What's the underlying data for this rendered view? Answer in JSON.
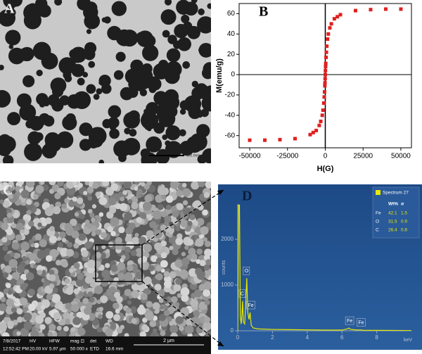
{
  "panel_a": {
    "label": "A",
    "scale": "500.0nm"
  },
  "panel_c": {
    "label": "C",
    "info_headers": [
      "7/8/2017",
      "HV",
      "HFW",
      "mag ⊡",
      "det",
      "WD"
    ],
    "info_values": [
      "12:52:42 PM",
      "20.00 kV",
      "5.97 µm",
      "50 000 x",
      "ETD",
      "16.6 mm"
    ],
    "scale": "2 µm"
  },
  "chart_data": [
    {
      "type": "scatter",
      "title": "B",
      "x_label": "H(G)",
      "y_label": "M(emu/g)",
      "color": "#e02020",
      "x": [
        -50000,
        -40000,
        -30000,
        -20000,
        -10000,
        -8000,
        -6000,
        -4000,
        -3000,
        -2000,
        -1500,
        -1000,
        -700,
        -500,
        -300,
        -200,
        -100,
        0,
        100,
        200,
        300,
        500,
        700,
        1000,
        1500,
        2000,
        3000,
        4000,
        6000,
        8000,
        10000,
        20000,
        30000,
        40000,
        50000
      ],
      "values": [
        -64.5,
        -64.5,
        -64,
        -63,
        -59,
        -57,
        -55,
        -50,
        -46,
        -40,
        -35,
        -28,
        -22,
        -17,
        -11,
        -8,
        -4,
        0,
        4,
        8,
        11,
        17,
        22,
        28,
        35,
        40,
        46,
        50,
        55,
        57,
        59,
        63,
        64,
        64.5,
        64.5
      ],
      "xlim": [
        -57000,
        57000
      ],
      "xticks": [
        -50000,
        -25000,
        0,
        25000,
        50000
      ],
      "ylim": [
        -72,
        70
      ],
      "yticks": [
        -60,
        -40,
        -20,
        0,
        20,
        40,
        60
      ]
    },
    {
      "type": "line",
      "title": "D",
      "x_label": "keV",
      "y_label": "counts",
      "x": [
        0,
        0.05,
        0.1,
        0.15,
        0.2,
        0.25,
        0.28,
        0.32,
        0.4,
        0.45,
        0.52,
        0.58,
        0.65,
        0.71,
        0.78,
        0.9,
        1.2,
        2,
        3,
        4,
        5,
        6,
        6.3,
        6.4,
        6.5,
        6.9,
        7.06,
        7.2,
        8,
        9,
        10
      ],
      "series": [
        {
          "name": "Spectrum 27",
          "color": "#e8e800",
          "values": [
            0,
            2750,
            2750,
            300,
            150,
            400,
            650,
            200,
            150,
            500,
            1150,
            400,
            250,
            400,
            120,
            60,
            40,
            30,
            25,
            20,
            15,
            15,
            40,
            60,
            30,
            15,
            20,
            12,
            10,
            8,
            5
          ]
        }
      ],
      "annotations": [
        {
          "text": "C",
          "x": 0.28,
          "y": 650
        },
        {
          "text": "O",
          "x": 0.52,
          "y": 1150
        },
        {
          "text": "Fe",
          "x": 0.71,
          "y": 400
        },
        {
          "text": "Fe",
          "x": 6.4,
          "y": 60
        },
        {
          "text": "Fe",
          "x": 7.06,
          "y": 20
        }
      ],
      "table": {
        "header": [
          "Wt%",
          "σ"
        ],
        "rows": [
          [
            "Fe",
            42.1,
            1.5
          ],
          [
            "O",
            31.5,
            0.9
          ],
          [
            "C",
            26.4,
            0.8
          ]
        ]
      },
      "xlim": [
        0,
        10
      ],
      "xticks": [
        0,
        2,
        4,
        6,
        8
      ],
      "ylim": [
        0,
        2770
      ],
      "yticks": [
        0,
        1000,
        2000
      ]
    }
  ]
}
